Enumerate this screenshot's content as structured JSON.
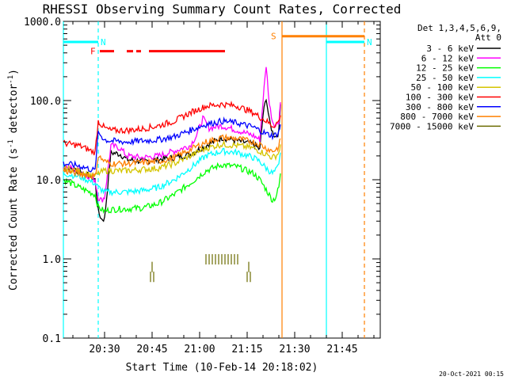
{
  "chart_data": {
    "type": "line",
    "title": "RHESSI Observing Summary Count Rates, Corrected",
    "xlabel": "Start Time (10-Feb-14 20:18:02)",
    "ylabel_main": "Corrected Count Rate (s",
    "ylabel_sup": "-1",
    "ylabel_mid": " detector",
    "ylabel_end": ")",
    "x_units": "minutes after 20:18:02",
    "xlim": [
      0,
      100
    ],
    "ylim": [
      0.1,
      1000
    ],
    "yscale": "log",
    "xticks": [
      {
        "value": 13,
        "label": "20:30"
      },
      {
        "value": 28,
        "label": "20:45"
      },
      {
        "value": 43,
        "label": "21:00"
      },
      {
        "value": 58,
        "label": "21:15"
      },
      {
        "value": 73,
        "label": "21:30"
      },
      {
        "value": 88,
        "label": "21:45"
      }
    ],
    "yticks": [
      {
        "value": 0.1,
        "label": "0.1"
      },
      {
        "value": 1,
        "label": "1.0"
      },
      {
        "value": 10,
        "label": "10.0"
      },
      {
        "value": 100,
        "label": "100.0"
      },
      {
        "value": 1000,
        "label": "1000.0"
      }
    ],
    "legend": {
      "header1": "Det 1,3,4,5,6,9,",
      "header2": "Att 0",
      "position": "right"
    },
    "series": [
      {
        "name": "3 - 6 keV",
        "color": "#000000",
        "x": [
          0,
          5,
          10,
          11,
          12,
          13,
          15,
          18,
          20,
          25,
          30,
          35,
          40,
          45,
          50,
          55,
          60,
          62,
          63,
          64,
          65,
          66,
          67,
          68,
          68.5
        ],
        "y": [
          14,
          13,
          10,
          4,
          3.2,
          3.2,
          22,
          21,
          18,
          17,
          18,
          19,
          21,
          27,
          34,
          31,
          28,
          24,
          65,
          110,
          55,
          40,
          35,
          40,
          90
        ]
      },
      {
        "name": "6 - 12 keV",
        "color": "#ff00ff",
        "x": [
          0,
          5,
          10,
          11,
          12,
          13,
          15,
          18,
          20,
          25,
          30,
          35,
          40,
          42,
          44,
          46,
          50,
          55,
          60,
          62,
          63,
          64,
          65,
          66,
          67,
          68,
          68.5
        ],
        "y": [
          15,
          13,
          10,
          6,
          5.5,
          6,
          27,
          25,
          20,
          19,
          20,
          23,
          27,
          36,
          60,
          45,
          48,
          42,
          36,
          32,
          100,
          280,
          90,
          55,
          48,
          55,
          95
        ]
      },
      {
        "name": "12 - 25 keV",
        "color": "#00ff00",
        "x": [
          0,
          5,
          10,
          11,
          13,
          15,
          20,
          25,
          30,
          35,
          40,
          45,
          50,
          55,
          60,
          62,
          64,
          66,
          67,
          68,
          68.5
        ],
        "y": [
          10,
          8,
          6.5,
          4.5,
          4,
          4.2,
          4.3,
          4.4,
          5,
          6.5,
          9,
          13,
          15.5,
          14.5,
          12,
          10,
          7.5,
          5.5,
          6,
          8,
          12
        ]
      },
      {
        "name": "25 - 50 keV",
        "color": "#00ffff",
        "x": [
          0,
          5,
          10,
          11,
          13,
          15,
          20,
          25,
          30,
          35,
          40,
          45,
          50,
          55,
          60,
          62,
          64,
          66,
          67,
          68,
          68.5
        ],
        "y": [
          12,
          11,
          9,
          8,
          7,
          7,
          7,
          7.3,
          8,
          10,
          14,
          20,
          23,
          22,
          19,
          17,
          14,
          12,
          13,
          15,
          22
        ]
      },
      {
        "name": "50 - 100 keV",
        "color": "#d4c400",
        "x": [
          0,
          5,
          10,
          11,
          13,
          15,
          20,
          25,
          30,
          35,
          40,
          45,
          50,
          55,
          60,
          62,
          64,
          66,
          67,
          68,
          68.5
        ],
        "y": [
          14,
          13,
          11,
          12,
          13,
          13,
          13,
          13.5,
          14,
          16,
          20,
          25,
          28,
          27,
          25,
          23,
          21,
          19,
          20,
          22,
          28
        ]
      },
      {
        "name": "100 - 300 keV",
        "color": "#ff0000",
        "x": [
          0,
          5,
          10,
          11,
          13,
          15,
          20,
          25,
          30,
          35,
          40,
          45,
          50,
          55,
          60,
          62,
          64,
          66,
          67,
          68,
          68.5
        ],
        "y": [
          29,
          27,
          22,
          55,
          45,
          42,
          42,
          44,
          48,
          55,
          70,
          85,
          90,
          85,
          70,
          62,
          55,
          48,
          50,
          55,
          65
        ]
      },
      {
        "name": "300 - 800 keV",
        "color": "#0000ff",
        "x": [
          0,
          5,
          10,
          11,
          13,
          15,
          20,
          25,
          30,
          35,
          40,
          45,
          50,
          55,
          60,
          62,
          64,
          66,
          67,
          68,
          68.5
        ],
        "y": [
          16,
          15,
          13,
          40,
          32,
          31,
          30,
          31,
          32,
          35,
          42,
          50,
          55,
          52,
          46,
          42,
          38,
          36,
          37,
          40,
          50
        ]
      },
      {
        "name": "800 - 7000 keV",
        "color": "#ff8000",
        "x": [
          0,
          5,
          10,
          11,
          13,
          15,
          20,
          25,
          30,
          35,
          40,
          45,
          50,
          55,
          60,
          62,
          64,
          66,
          67,
          68,
          68.5
        ],
        "y": [
          13,
          12,
          11,
          20,
          17,
          16,
          16,
          16.5,
          17,
          19,
          24,
          30,
          34,
          33,
          30,
          28,
          25,
          23,
          24,
          26,
          33
        ]
      },
      {
        "name": "7000 - 15000 keV",
        "color": "#6b6b00",
        "x": [
          27.5,
          28,
          28.5,
          45,
          46,
          47,
          48,
          49,
          50,
          51,
          52,
          53,
          54,
          55,
          58,
          58.5,
          59
        ],
        "y": [
          0.6,
          0.8,
          0.6,
          1.0,
          1.0,
          1.0,
          1.0,
          1.0,
          1.0,
          1.0,
          1.0,
          1.0,
          1.0,
          1.0,
          0.6,
          0.8,
          0.6
        ]
      }
    ],
    "annotations": {
      "flags": [
        {
          "label": "N",
          "color": "#00ffff",
          "value": 550,
          "segments": [
            [
              0,
              11
            ]
          ],
          "line_style": "solid"
        },
        {
          "label": "N",
          "color": "#00ffff",
          "value": 550,
          "segments": [
            [
              83,
              95
            ]
          ],
          "line_style": "solid"
        },
        {
          "label": "F",
          "color": "#ff0000",
          "value": 420,
          "segments": [
            [
              11.5,
              16
            ],
            [
              20,
              22
            ],
            [
              23,
              24.5
            ],
            [
              27,
              51
            ]
          ],
          "line_style": "solid"
        },
        {
          "label": "S",
          "color": "#ff8000",
          "value": 650,
          "segments": [
            [
              69,
              95
            ]
          ],
          "line_style": "solid"
        }
      ],
      "vertical_lines": [
        {
          "x": 0,
          "color": "#00ffff",
          "style": "solid"
        },
        {
          "x": 11,
          "color": "#00ffff",
          "style": "dashed"
        },
        {
          "x": 69,
          "color": "#ff8000",
          "style": "solid"
        },
        {
          "x": 83,
          "color": "#00ffff",
          "style": "solid"
        },
        {
          "x": 95,
          "color": "#ff8000",
          "style": "dashed"
        }
      ]
    },
    "footer": "20-Oct-2021 00:15"
  }
}
